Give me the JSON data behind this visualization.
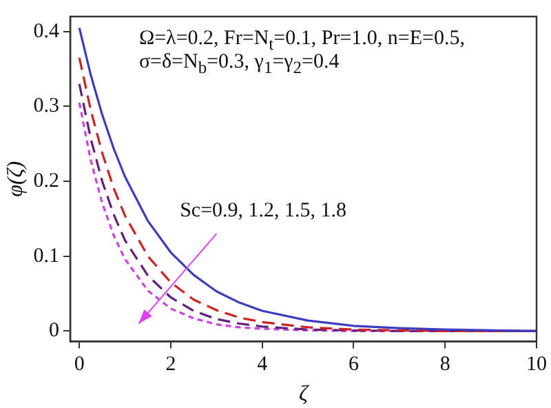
{
  "chart_data": {
    "type": "line",
    "xlabel": "ζ",
    "ylabel": "φ(ζ)",
    "x": [
      0,
      0.25,
      0.5,
      0.75,
      1,
      1.5,
      2,
      2.5,
      3,
      3.5,
      4,
      5,
      6,
      7,
      8,
      10
    ],
    "series": [
      {
        "color": "#3c3cc0",
        "line_style": "solid",
        "values": [
          0.405,
          0.342,
          0.289,
          0.244,
          0.206,
          0.147,
          0.105,
          0.075,
          0.053,
          0.038,
          0.027,
          0.014,
          0.007,
          0.004,
          0.002,
          0.0
        ]
      },
      {
        "color": "#d02020",
        "line_style": "dashed",
        "values": [
          0.365,
          0.295,
          0.238,
          0.191,
          0.154,
          0.1,
          0.065,
          0.042,
          0.028,
          0.018,
          0.012,
          0.005,
          0.002,
          0.001,
          0.0,
          0.0
        ]
      },
      {
        "color": "#602080",
        "line_style": "dashed",
        "values": [
          0.33,
          0.257,
          0.2,
          0.156,
          0.121,
          0.074,
          0.045,
          0.027,
          0.016,
          0.01,
          0.006,
          0.002,
          0.001,
          0.0,
          0.0,
          0.0
        ]
      },
      {
        "color": "#d040e0",
        "line_style": "dotted",
        "values": [
          0.305,
          0.228,
          0.171,
          0.128,
          0.096,
          0.054,
          0.03,
          0.017,
          0.009,
          0.005,
          0.003,
          0.001,
          0.0,
          0.0,
          0.0,
          0.0
        ]
      }
    ],
    "xlim": [
      -0.2,
      10
    ],
    "ylim": [
      -0.014,
      0.42
    ],
    "xticks": [
      0,
      2,
      4,
      6,
      8,
      10
    ],
    "yticks": [
      0,
      0.1,
      0.2,
      0.3,
      0.4
    ],
    "grid": false,
    "legend": false,
    "marker": "none",
    "annotations": [
      "Ω=λ=0.2, Fr=N$_{t}$=0.1, Pr=1.0, n=E=0.5,",
      "σ=δ=N$_{b}$=0.3, γ$_{1}$=γ$_{2}$=0.4",
      "Sc=0.9, 1.2, 1.5, 1.8"
    ]
  }
}
